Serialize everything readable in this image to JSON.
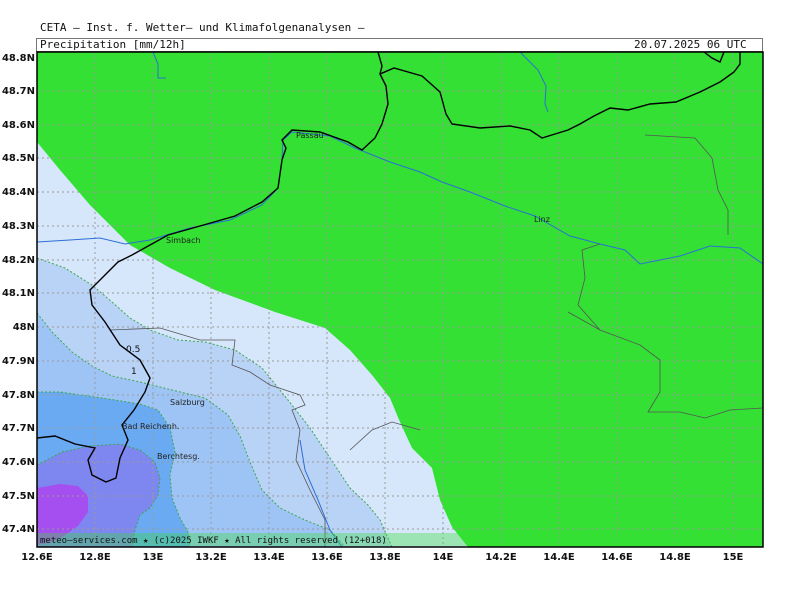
{
  "header": {
    "title": "CETA — Inst. f. Wetter— und Klimafolgenanalysen —",
    "field": "Precipitation [mm/12h]",
    "valid_time": "20.07.2025 06 UTC"
  },
  "map": {
    "lat_labels": [
      "48.8N",
      "48.7N",
      "48.6N",
      "48.5N",
      "48.4N",
      "48.3N",
      "48.2N",
      "48.1N",
      "48N",
      "47.9N",
      "47.8N",
      "47.7N",
      "47.6N",
      "47.5N",
      "47.4N"
    ],
    "lon_labels": [
      "12.6E",
      "12.8E",
      "13E",
      "13.2E",
      "13.4E",
      "13.6E",
      "13.8E",
      "14E",
      "14.2E",
      "14.4E",
      "14.6E",
      "14.8E",
      "15E"
    ],
    "cities": [
      "Passau",
      "Simbach",
      "Linz",
      "Salzburg",
      "Bad Reichenh.",
      "Berchtesg."
    ],
    "contour_labels": [
      "0.5",
      "1"
    ],
    "colors": {
      "dry": "#33e033",
      "lt_0_5": "#d6e6fb",
      "c_0_5_1": "#b9d3f7",
      "c_1_2": "#9ec4f5",
      "c_2_5": "#6aaaf3",
      "c_5_10": "#7e86ef",
      "c_gt_10": "#a64ff0",
      "river": "#2d6fd6",
      "border": "#000000"
    },
    "copyright": "meteo—services.com ★ (c)2025 IWKF ★ All rights reserved (12+018)"
  }
}
